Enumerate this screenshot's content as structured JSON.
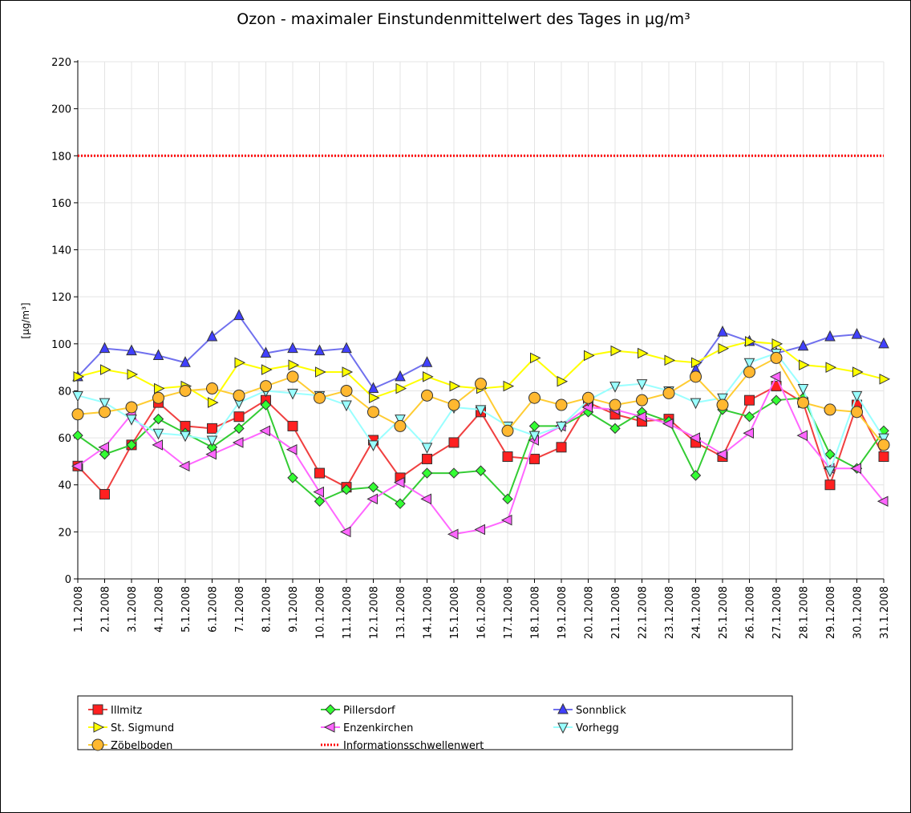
{
  "chart_data": {
    "type": "line",
    "title": "Ozon -  maximaler Einstundenmittelwert des Tages in µg/m³",
    "y_label": "[µg/m³]",
    "categories": [
      "1.1.2008",
      "2.1.2008",
      "3.1.2008",
      "4.1.2008",
      "5.1.2008",
      "6.1.2008",
      "7.1.2008",
      "8.1.2008",
      "9.1.2008",
      "10.1.2008",
      "11.1.2008",
      "12.1.2008",
      "13.1.2008",
      "14.1.2008",
      "15.1.2008",
      "16.1.2008",
      "17.1.2008",
      "18.1.2008",
      "19.1.2008",
      "20.1.2008",
      "21.1.2008",
      "22.1.2008",
      "23.1.2008",
      "24.1.2008",
      "25.1.2008",
      "26.1.2008",
      "27.1.2008",
      "28.1.2008",
      "29.1.2008",
      "30.1.2008",
      "31.1.2008"
    ],
    "ylim": [
      0,
      220
    ],
    "yticks": [
      0,
      20,
      40,
      60,
      80,
      100,
      120,
      140,
      160,
      180,
      200,
      220
    ],
    "grid": true,
    "series": [
      {
        "name": "Illmitz",
        "color": "#f04040",
        "marker": "square",
        "marker_color": "#ff2020",
        "values": [
          48,
          36,
          57,
          75,
          65,
          64,
          69,
          76,
          65,
          45,
          39,
          59,
          43,
          51,
          58,
          71,
          52,
          51,
          56,
          75,
          70,
          67,
          68,
          58,
          52,
          76,
          82,
          75,
          40,
          74,
          52
        ]
      },
      {
        "name": "Pillersdorf",
        "color": "#33cc33",
        "marker": "diamond",
        "marker_color": "#33ff33",
        "values": [
          61,
          53,
          57,
          68,
          62,
          56,
          64,
          74,
          43,
          33,
          38,
          39,
          32,
          45,
          45,
          46,
          34,
          65,
          65,
          71,
          64,
          71,
          67,
          44,
          72,
          69,
          76,
          77,
          53,
          47,
          63
        ]
      },
      {
        "name": "Sonnblick",
        "color": "#7070ee",
        "marker": "triangle-up",
        "marker_color": "#4040ff",
        "values": [
          86,
          98,
          97,
          95,
          92,
          103,
          112,
          96,
          98,
          97,
          98,
          81,
          86,
          92,
          null,
          null,
          null,
          null,
          null,
          null,
          null,
          null,
          null,
          89,
          105,
          101,
          96,
          99,
          103,
          104,
          100
        ]
      },
      {
        "name": "St. Sigmund",
        "color": "#ffff00",
        "marker": "triangle-right",
        "marker_color": "#ffff00",
        "values": [
          86,
          89,
          87,
          81,
          82,
          75,
          92,
          89,
          91,
          88,
          88,
          77,
          81,
          86,
          82,
          81,
          82,
          94,
          84,
          95,
          97,
          96,
          93,
          92,
          98,
          101,
          100,
          91,
          90,
          88,
          85
        ]
      },
      {
        "name": "Enzenkirchen",
        "color": "#ff66ff",
        "marker": "triangle-left",
        "marker_color": "#ff66ff",
        "values": [
          48,
          56,
          70,
          57,
          48,
          53,
          58,
          63,
          55,
          37,
          20,
          34,
          41,
          34,
          19,
          21,
          25,
          59,
          65,
          73,
          72,
          69,
          66,
          60,
          53,
          62,
          86,
          61,
          47,
          47,
          33
        ]
      },
      {
        "name": "Vorhegg",
        "color": "#99ffff",
        "marker": "triangle-down",
        "marker_color": "#99ffff",
        "values": [
          78,
          75,
          68,
          62,
          61,
          59,
          75,
          80,
          79,
          78,
          74,
          57,
          68,
          56,
          73,
          72,
          65,
          61,
          65,
          76,
          82,
          83,
          80,
          75,
          77,
          92,
          96,
          81,
          46,
          78,
          60
        ]
      },
      {
        "name": "Zöbelboden",
        "color": "#ffcc33",
        "marker": "circle",
        "marker_color": "#ffb830",
        "values": [
          70,
          71,
          73,
          77,
          80,
          81,
          78,
          82,
          86,
          77,
          80,
          71,
          65,
          78,
          74,
          83,
          63,
          77,
          74,
          77,
          74,
          76,
          79,
          86,
          74,
          88,
          94,
          75,
          72,
          71,
          57
        ]
      },
      {
        "name": "Informationsschwellenwert",
        "color": "#ff0000",
        "dash": "dotted",
        "values": [
          180,
          180,
          180,
          180,
          180,
          180,
          180,
          180,
          180,
          180,
          180,
          180,
          180,
          180,
          180,
          180,
          180,
          180,
          180,
          180,
          180,
          180,
          180,
          180,
          180,
          180,
          180,
          180,
          180,
          180,
          180
        ]
      }
    ]
  }
}
